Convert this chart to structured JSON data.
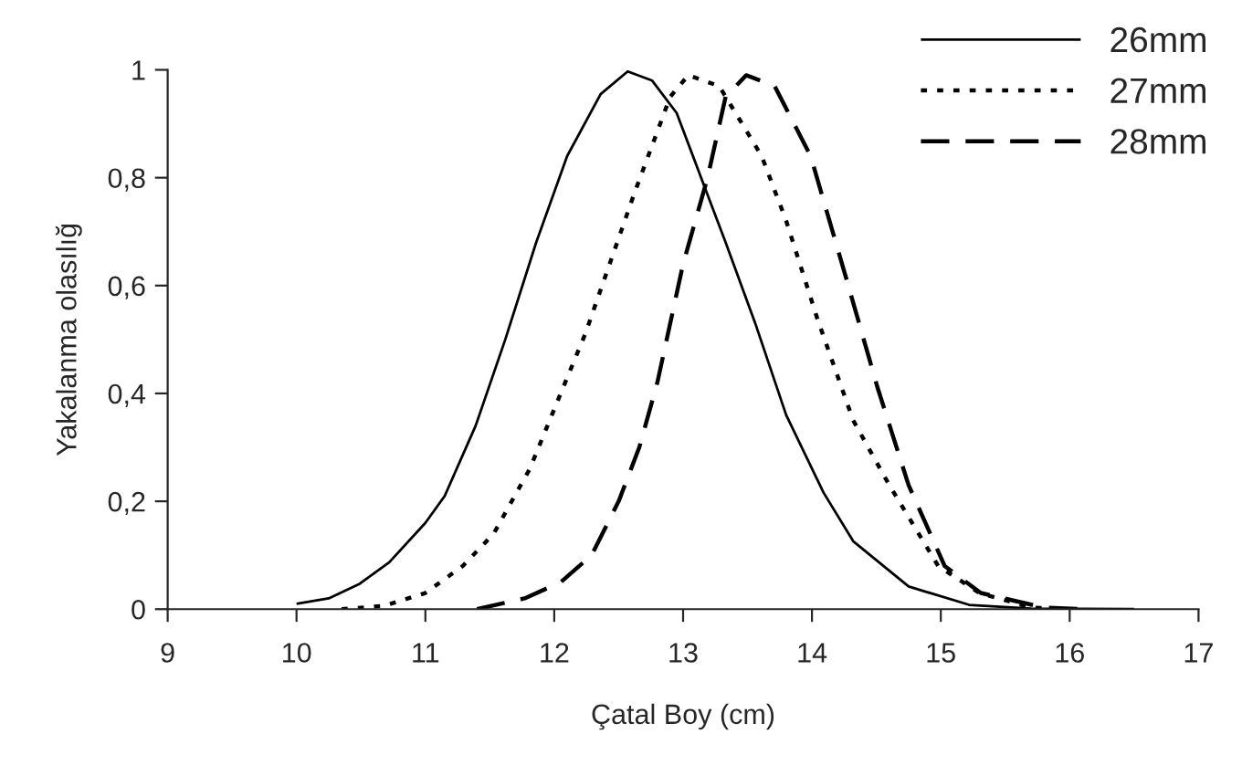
{
  "chart_data": {
    "type": "line",
    "xlabel": "Çatal Boy (cm)",
    "ylabel": "Yakalanma olasılığ",
    "xlim": [
      9,
      17
    ],
    "xticks": [
      9,
      10,
      11,
      12,
      13,
      14,
      15,
      16,
      17
    ],
    "ylim": [
      0,
      1
    ],
    "yticks": [
      {
        "value": 0,
        "label": "0"
      },
      {
        "value": 0.2,
        "label": "0,2"
      },
      {
        "value": 0.4,
        "label": "0,4"
      },
      {
        "value": 0.6,
        "label": "0,6"
      },
      {
        "value": 0.8,
        "label": "0,8"
      },
      {
        "value": 1,
        "label": "1"
      }
    ],
    "grid": false,
    "legend": "top right",
    "marker": "none",
    "series": [
      {
        "name": "26mm",
        "color": "#000000",
        "line_style": "solid",
        "x": [
          10,
          10.25,
          10.49,
          10.72,
          11.0,
          11.15,
          11.39,
          11.62,
          11.86,
          12.1,
          12.36,
          12.57,
          12.76,
          12.95,
          13.14,
          13.33,
          13.56,
          13.8,
          14.09,
          14.32,
          14.75,
          15.22,
          15.7,
          16.5
        ],
        "values": [
          0.01,
          0.02,
          0.047,
          0.087,
          0.16,
          0.21,
          0.34,
          0.5,
          0.68,
          0.84,
          0.955,
          0.997,
          0.98,
          0.92,
          0.8,
          0.68,
          0.53,
          0.36,
          0.216,
          0.126,
          0.042,
          0.008,
          0.001,
          0
        ]
      },
      {
        "name": "27mm",
        "color": "#000000",
        "line_style": "dotted",
        "x": [
          10.35,
          10.68,
          11.0,
          11.29,
          11.53,
          11.81,
          12.05,
          12.24,
          12.43,
          12.62,
          12.76,
          12.9,
          13.04,
          13.28,
          13.61,
          13.8,
          14.04,
          14.32,
          14.6,
          14.98,
          15.3,
          15.7,
          16.0
        ],
        "values": [
          0,
          0.006,
          0.03,
          0.08,
          0.14,
          0.26,
          0.4,
          0.51,
          0.64,
          0.77,
          0.86,
          0.95,
          0.99,
          0.97,
          0.84,
          0.72,
          0.54,
          0.35,
          0.23,
          0.08,
          0.03,
          0.003,
          0
        ]
      },
      {
        "name": "28mm",
        "color": "#000000",
        "line_style": "dashed",
        "x": [
          11.4,
          11.77,
          12.05,
          12.29,
          12.5,
          12.66,
          12.8,
          13.0,
          13.19,
          13.33,
          13.49,
          13.71,
          13.99,
          14.27,
          14.51,
          14.75,
          15.03,
          15.31,
          15.8,
          16.1
        ],
        "values": [
          0,
          0.02,
          0.05,
          0.1,
          0.2,
          0.3,
          0.42,
          0.64,
          0.8,
          0.95,
          0.99,
          0.97,
          0.84,
          0.61,
          0.41,
          0.23,
          0.08,
          0.03,
          0.003,
          0
        ]
      }
    ]
  }
}
